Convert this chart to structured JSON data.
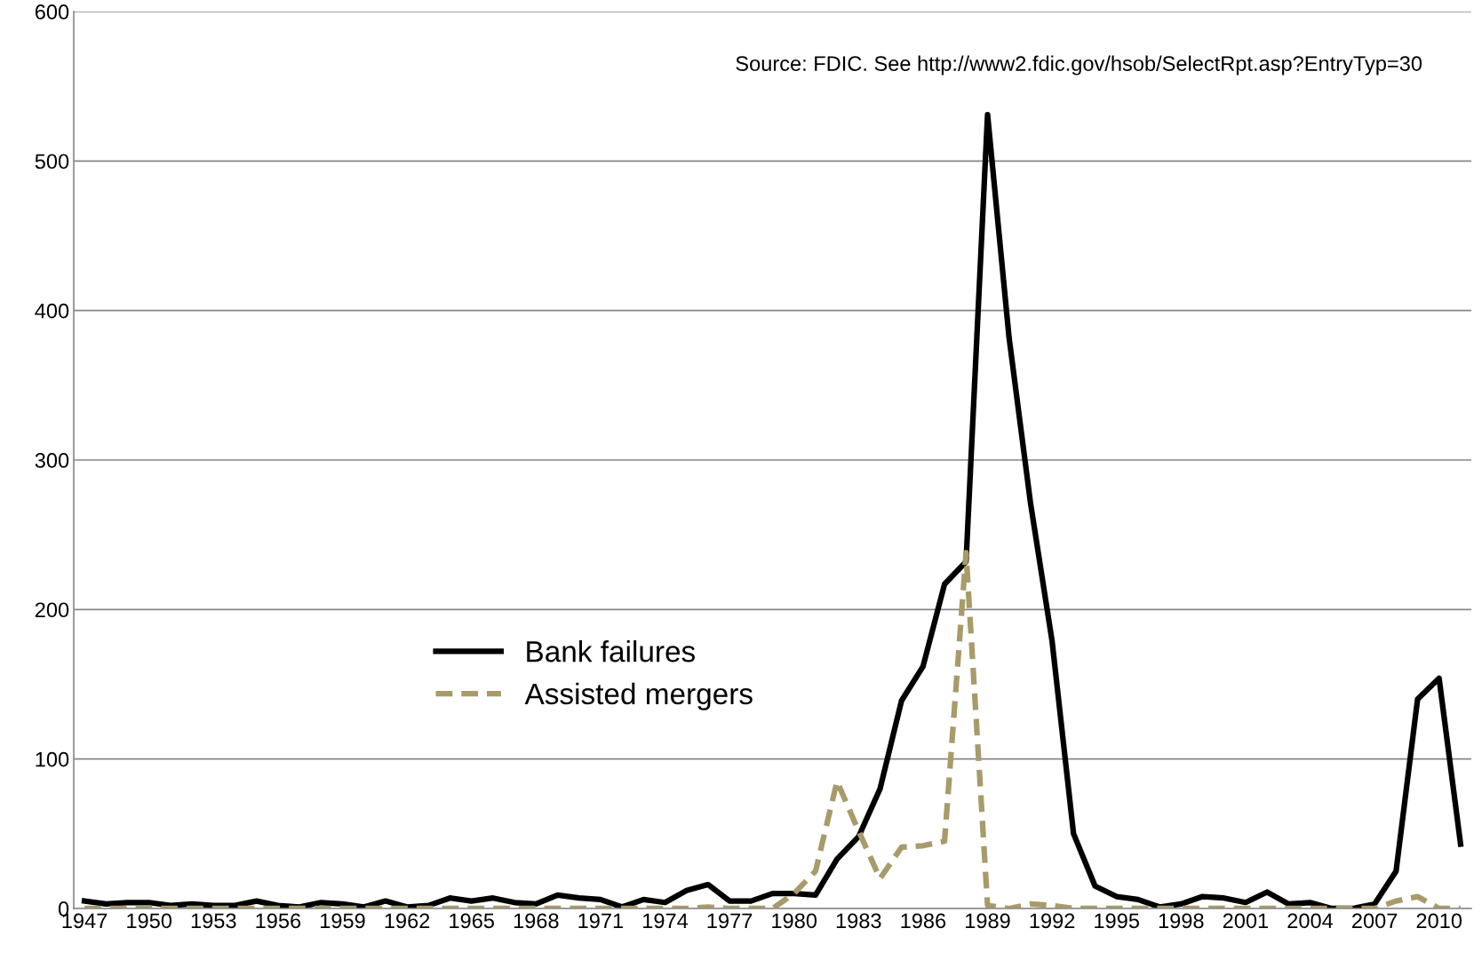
{
  "chart_data": {
    "type": "line",
    "categories": [
      "1947",
      null,
      null,
      "1950",
      null,
      null,
      "1953",
      null,
      null,
      "1956",
      null,
      null,
      "1959",
      null,
      null,
      "1962",
      null,
      null,
      "1965",
      null,
      null,
      "1968",
      null,
      null,
      "1971",
      null,
      null,
      "1974",
      null,
      null,
      "1977",
      null,
      null,
      "1980",
      null,
      null,
      "1983",
      null,
      null,
      "1986",
      null,
      null,
      "1989",
      null,
      null,
      "1992",
      null,
      null,
      "1995",
      null,
      null,
      "1998",
      null,
      null,
      "2001",
      null,
      null,
      "2004",
      null,
      null,
      "2007",
      null,
      null,
      "2010",
      null
    ],
    "series": [
      {
        "name": "Bank failures",
        "color": "#000000",
        "line_style": "solid",
        "values": [
          5,
          3,
          4,
          4,
          2,
          3,
          2,
          2,
          5,
          2,
          1,
          4,
          3,
          1,
          5,
          1,
          2,
          7,
          5,
          7,
          4,
          3,
          9,
          7,
          6,
          1,
          6,
          4,
          12,
          16,
          5,
          5,
          10,
          10,
          9,
          33,
          48,
          80,
          139,
          162,
          217,
          232,
          531,
          382,
          271,
          179,
          50,
          15,
          8,
          6,
          1,
          3,
          8,
          7,
          4,
          11,
          3,
          4,
          0,
          0,
          3,
          25,
          140,
          154,
          43
        ]
      },
      {
        "name": "Assisted mergers",
        "color": "#a89b6a",
        "line_style": "dashed",
        "values": [
          0,
          0,
          0,
          0,
          0,
          0,
          0,
          0,
          0,
          0,
          0,
          0,
          0,
          0,
          0,
          0,
          0,
          0,
          0,
          0,
          0,
          0,
          0,
          0,
          0,
          0,
          0,
          0,
          0,
          1,
          0,
          0,
          0,
          10,
          25,
          85,
          52,
          20,
          41,
          42,
          45,
          238,
          2,
          0,
          3,
          2,
          0,
          0,
          0,
          0,
          0,
          0,
          0,
          0,
          0,
          0,
          0,
          0,
          0,
          0,
          0,
          5,
          8,
          0,
          0
        ]
      }
    ],
    "ylim": [
      0,
      600
    ],
    "yticks": [
      0,
      100,
      200,
      300,
      400,
      500,
      600
    ],
    "grid": "y",
    "legend": "bottom",
    "marker": "none",
    "annotations": [
      "Source: FDIC. See http://www2.fdic.gov/hsob/SelectRpt.asp?EntryTyp=30"
    ]
  }
}
